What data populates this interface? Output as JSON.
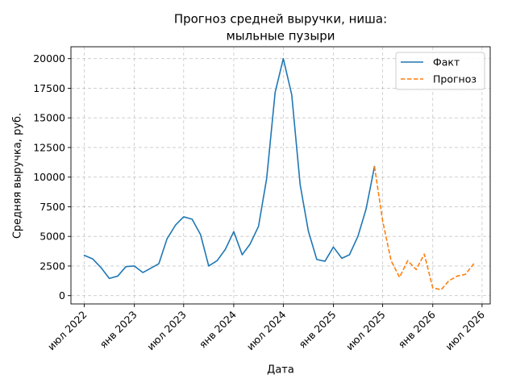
{
  "chart_data": {
    "type": "line",
    "title_line1": "Прогноз средней выручки, ниша:",
    "title_line2": "мыльные пузыри",
    "xlabel": "Дата",
    "ylabel": "Средняя выручка, руб.",
    "grid": true,
    "legend_placement": "top-right",
    "xlim": [
      "2022-05-13",
      "2026-07-31"
    ],
    "ylim": [
      -700,
      21000
    ],
    "y_ticks": [
      0,
      2500,
      5000,
      7500,
      10000,
      12500,
      15000,
      17500,
      20000
    ],
    "y_tick_labels": [
      "0",
      "2500",
      "5000",
      "7500",
      "10000",
      "12500",
      "15000",
      "17500",
      "20000"
    ],
    "x_ticks": [
      "2022-07-01",
      "2023-01-01",
      "2023-07-01",
      "2024-01-01",
      "2024-07-01",
      "2025-01-01",
      "2025-07-01",
      "2026-01-01",
      "2026-07-01"
    ],
    "x_tick_labels": [
      "июл 2022",
      "янв 2023",
      "июл 2023",
      "янв 2024",
      "июл 2024",
      "янв 2025",
      "июл 2025",
      "янв 2026",
      "июл 2026"
    ],
    "series": [
      {
        "name": "Факт",
        "color": "#1f77b4",
        "style": "solid",
        "x": [
          "2022-07-01",
          "2022-08-01",
          "2022-09-01",
          "2022-10-01",
          "2022-11-01",
          "2022-12-01",
          "2023-01-01",
          "2023-02-01",
          "2023-03-01",
          "2023-04-01",
          "2023-05-01",
          "2023-06-01",
          "2023-07-01",
          "2023-08-01",
          "2023-09-01",
          "2023-10-01",
          "2023-11-01",
          "2023-12-01",
          "2024-01-01",
          "2024-02-01",
          "2024-03-01",
          "2024-04-01",
          "2024-05-01",
          "2024-06-01",
          "2024-07-01",
          "2024-08-01",
          "2024-09-01",
          "2024-10-01",
          "2024-11-01",
          "2024-12-01",
          "2025-01-01",
          "2025-02-01",
          "2025-03-01",
          "2025-04-01",
          "2025-05-01",
          "2025-06-01"
        ],
        "y": [
          3400,
          3100,
          2350,
          1450,
          1650,
          2450,
          2500,
          1950,
          2300,
          2700,
          4800,
          5950,
          6650,
          6450,
          5150,
          2500,
          2950,
          3900,
          5400,
          3450,
          4350,
          5850,
          9900,
          17150,
          20000,
          16950,
          9350,
          5450,
          3050,
          2900,
          4100,
          3150,
          3450,
          5000,
          7300,
          10900
        ]
      },
      {
        "name": "Прогноз",
        "color": "#ff7f0e",
        "style": "dashed",
        "x": [
          "2025-06-01",
          "2025-07-01",
          "2025-08-01",
          "2025-09-01",
          "2025-10-01",
          "2025-11-01",
          "2025-12-01",
          "2026-01-01",
          "2026-02-01",
          "2026-03-01",
          "2026-04-01",
          "2026-05-01",
          "2026-06-01"
        ],
        "y": [
          10900,
          6300,
          2950,
          1550,
          2950,
          2200,
          3500,
          650,
          500,
          1250,
          1650,
          1800,
          2700
        ]
      }
    ]
  }
}
